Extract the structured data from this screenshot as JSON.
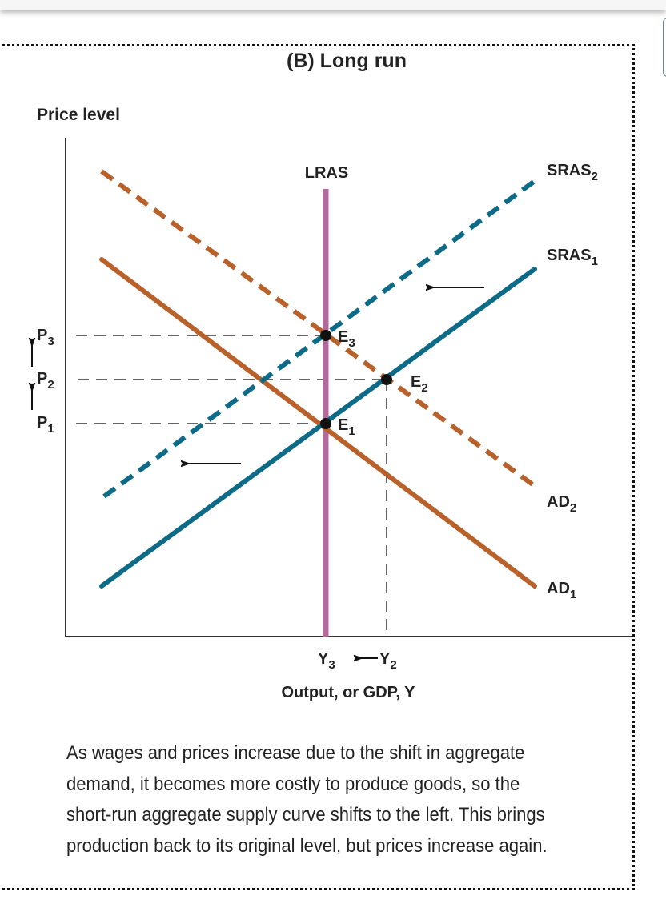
{
  "title": "(B) Long run",
  "axes": {
    "y_label": "Price level",
    "x_label": "Output, or GDP, Y"
  },
  "curves": {
    "lras": "LRAS",
    "sras2": {
      "main": "SRAS",
      "sub": "2"
    },
    "sras1": {
      "main": "SRAS",
      "sub": "1"
    },
    "ad2": {
      "main": "AD",
      "sub": "2"
    },
    "ad1": {
      "main": "AD",
      "sub": "1"
    }
  },
  "points": {
    "e1": {
      "main": "E",
      "sub": "1"
    },
    "e2": {
      "main": "E",
      "sub": "2"
    },
    "e3": {
      "main": "E",
      "sub": "3"
    }
  },
  "price_ticks": {
    "p1": {
      "main": "P",
      "sub": "1"
    },
    "p2": {
      "main": "P",
      "sub": "2"
    },
    "p3": {
      "main": "P",
      "sub": "3"
    }
  },
  "output_ticks": {
    "y3": {
      "main": "Y",
      "sub": "3"
    },
    "y2": {
      "main": "Y",
      "sub": "2"
    }
  },
  "colors": {
    "ad": "#b8612a",
    "sras": "#0d6b87",
    "lras": "#b5689b",
    "guide": "#333333"
  },
  "caption": "As wages and prices increase due to the shift in aggregate demand, it becomes more costly to produce goods, so the short-run aggregate supply curve shifts to the left. This brings production back to its original level, but prices increase again."
}
